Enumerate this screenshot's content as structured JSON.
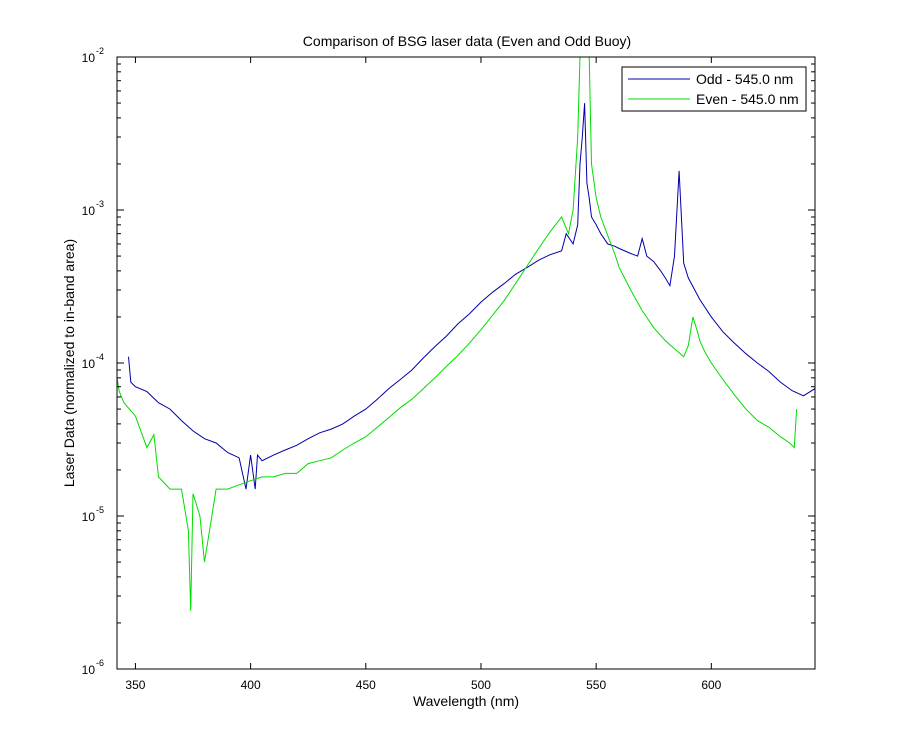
{
  "chart_data": {
    "type": "line",
    "title": "Comparison of BSG laser data (Even and Odd Buoy)",
    "xlabel": "Wavelength (nm)",
    "ylabel": "Laser Data (normalized to in-band area)",
    "xlim": [
      342,
      645
    ],
    "ylim": [
      1e-06,
      0.01
    ],
    "yscale": "log",
    "grid": false,
    "legend_position": "top-right",
    "x_ticks": [
      350,
      400,
      450,
      500,
      550,
      600
    ],
    "x_tick_labels": [
      "350",
      "400",
      "450",
      "500",
      "550",
      "600"
    ],
    "y_ticks": [
      {
        "value": 1e-06,
        "base": "10",
        "exp": "-6"
      },
      {
        "value": 1e-05,
        "base": "10",
        "exp": "-5"
      },
      {
        "value": 0.0001,
        "base": "10",
        "exp": "-4"
      },
      {
        "value": 0.001,
        "base": "10",
        "exp": "-3"
      },
      {
        "value": 0.01,
        "base": "10",
        "exp": "-2"
      }
    ],
    "series": [
      {
        "name": "Odd - 545.0 nm",
        "color": "#0000aa",
        "x": [
          347,
          348,
          350,
          355,
          360,
          365,
          370,
          375,
          380,
          385,
          390,
          395,
          398,
          400,
          402,
          403,
          405,
          410,
          415,
          420,
          425,
          430,
          435,
          440,
          445,
          450,
          455,
          460,
          465,
          470,
          475,
          480,
          485,
          490,
          495,
          500,
          505,
          510,
          515,
          520,
          525,
          530,
          535,
          537,
          540,
          542,
          543,
          544,
          545,
          546,
          547,
          548,
          550,
          552,
          555,
          558,
          560,
          565,
          568,
          570,
          572,
          575,
          578,
          580,
          582,
          584,
          586,
          587,
          588,
          590,
          595,
          600,
          605,
          610,
          615,
          620,
          625,
          630,
          635,
          640,
          645
        ],
        "y": [
          0.00011,
          7.5e-05,
          7e-05,
          6.5e-05,
          5.5e-05,
          5e-05,
          4.2e-05,
          3.6e-05,
          3.2e-05,
          3e-05,
          2.6e-05,
          2.4e-05,
          1.5e-05,
          2.5e-05,
          1.5e-05,
          2.5e-05,
          2.3e-05,
          2.5e-05,
          2.7e-05,
          2.9e-05,
          3.2e-05,
          3.5e-05,
          3.7e-05,
          4e-05,
          4.5e-05,
          5e-05,
          5.8e-05,
          6.8e-05,
          7.8e-05,
          9e-05,
          0.000108,
          0.000128,
          0.00015,
          0.00018,
          0.00021,
          0.00025,
          0.00029,
          0.00033,
          0.00038,
          0.00042,
          0.00047,
          0.00051,
          0.00054,
          0.0007,
          0.0006,
          0.0008,
          0.002,
          0.003,
          0.005,
          0.0015,
          0.0012,
          0.0009,
          0.0008,
          0.0007,
          0.0006,
          0.00058,
          0.00056,
          0.00052,
          0.0005,
          0.00065,
          0.0005,
          0.00046,
          0.0004,
          0.00036,
          0.00032,
          0.0005,
          0.0018,
          0.0009,
          0.00045,
          0.00036,
          0.00026,
          0.0002,
          0.00016,
          0.000135,
          0.000115,
          0.0001,
          8.8e-05,
          7.5e-05,
          6.6e-05,
          6.1e-05,
          6.8e-05
        ]
      },
      {
        "name": "Even - 545.0 nm",
        "color": "#00dd00",
        "x": [
          342,
          343,
          345,
          350,
          355,
          358,
          360,
          365,
          370,
          373,
          374,
          375,
          378,
          380,
          385,
          390,
          395,
          400,
          405,
          410,
          415,
          420,
          425,
          430,
          435,
          440,
          445,
          450,
          455,
          460,
          465,
          470,
          475,
          480,
          485,
          490,
          495,
          500,
          505,
          510,
          515,
          520,
          525,
          530,
          535,
          538,
          540,
          542,
          543,
          544,
          545,
          546,
          547,
          548,
          550,
          552,
          555,
          558,
          560,
          565,
          570,
          575,
          580,
          585,
          588,
          590,
          592,
          594,
          595,
          597,
          600,
          605,
          610,
          615,
          620,
          625,
          630,
          634,
          636,
          637
        ],
        "y": [
          8e-05,
          6.5e-05,
          5.5e-05,
          4.5e-05,
          2.8e-05,
          3.4e-05,
          1.8e-05,
          1.5e-05,
          1.5e-05,
          8e-06,
          2.4e-06,
          1.4e-05,
          1e-05,
          5e-06,
          1.5e-05,
          1.5e-05,
          1.6e-05,
          1.7e-05,
          1.8e-05,
          1.8e-05,
          1.9e-05,
          1.9e-05,
          2.2e-05,
          2.3e-05,
          2.4e-05,
          2.7e-05,
          3e-05,
          3.3e-05,
          3.8e-05,
          4.4e-05,
          5.1e-05,
          5.8e-05,
          6.8e-05,
          8e-05,
          9.5e-05,
          0.000112,
          0.000135,
          0.000165,
          0.000205,
          0.000255,
          0.00033,
          0.00043,
          0.00056,
          0.00072,
          0.0009,
          0.0007,
          0.001,
          0.003,
          0.01,
          0.01,
          0.01,
          0.01,
          0.01,
          0.002,
          0.0012,
          0.0009,
          0.00068,
          0.00052,
          0.00042,
          0.0003,
          0.00022,
          0.00017,
          0.00014,
          0.00012,
          0.00011,
          0.00013,
          0.0002,
          0.00016,
          0.00014,
          0.00012,
          0.0001,
          7.8e-05,
          6.2e-05,
          5e-05,
          4.2e-05,
          3.8e-05,
          3.3e-05,
          3e-05,
          2.8e-05,
          5e-05
        ]
      }
    ]
  }
}
